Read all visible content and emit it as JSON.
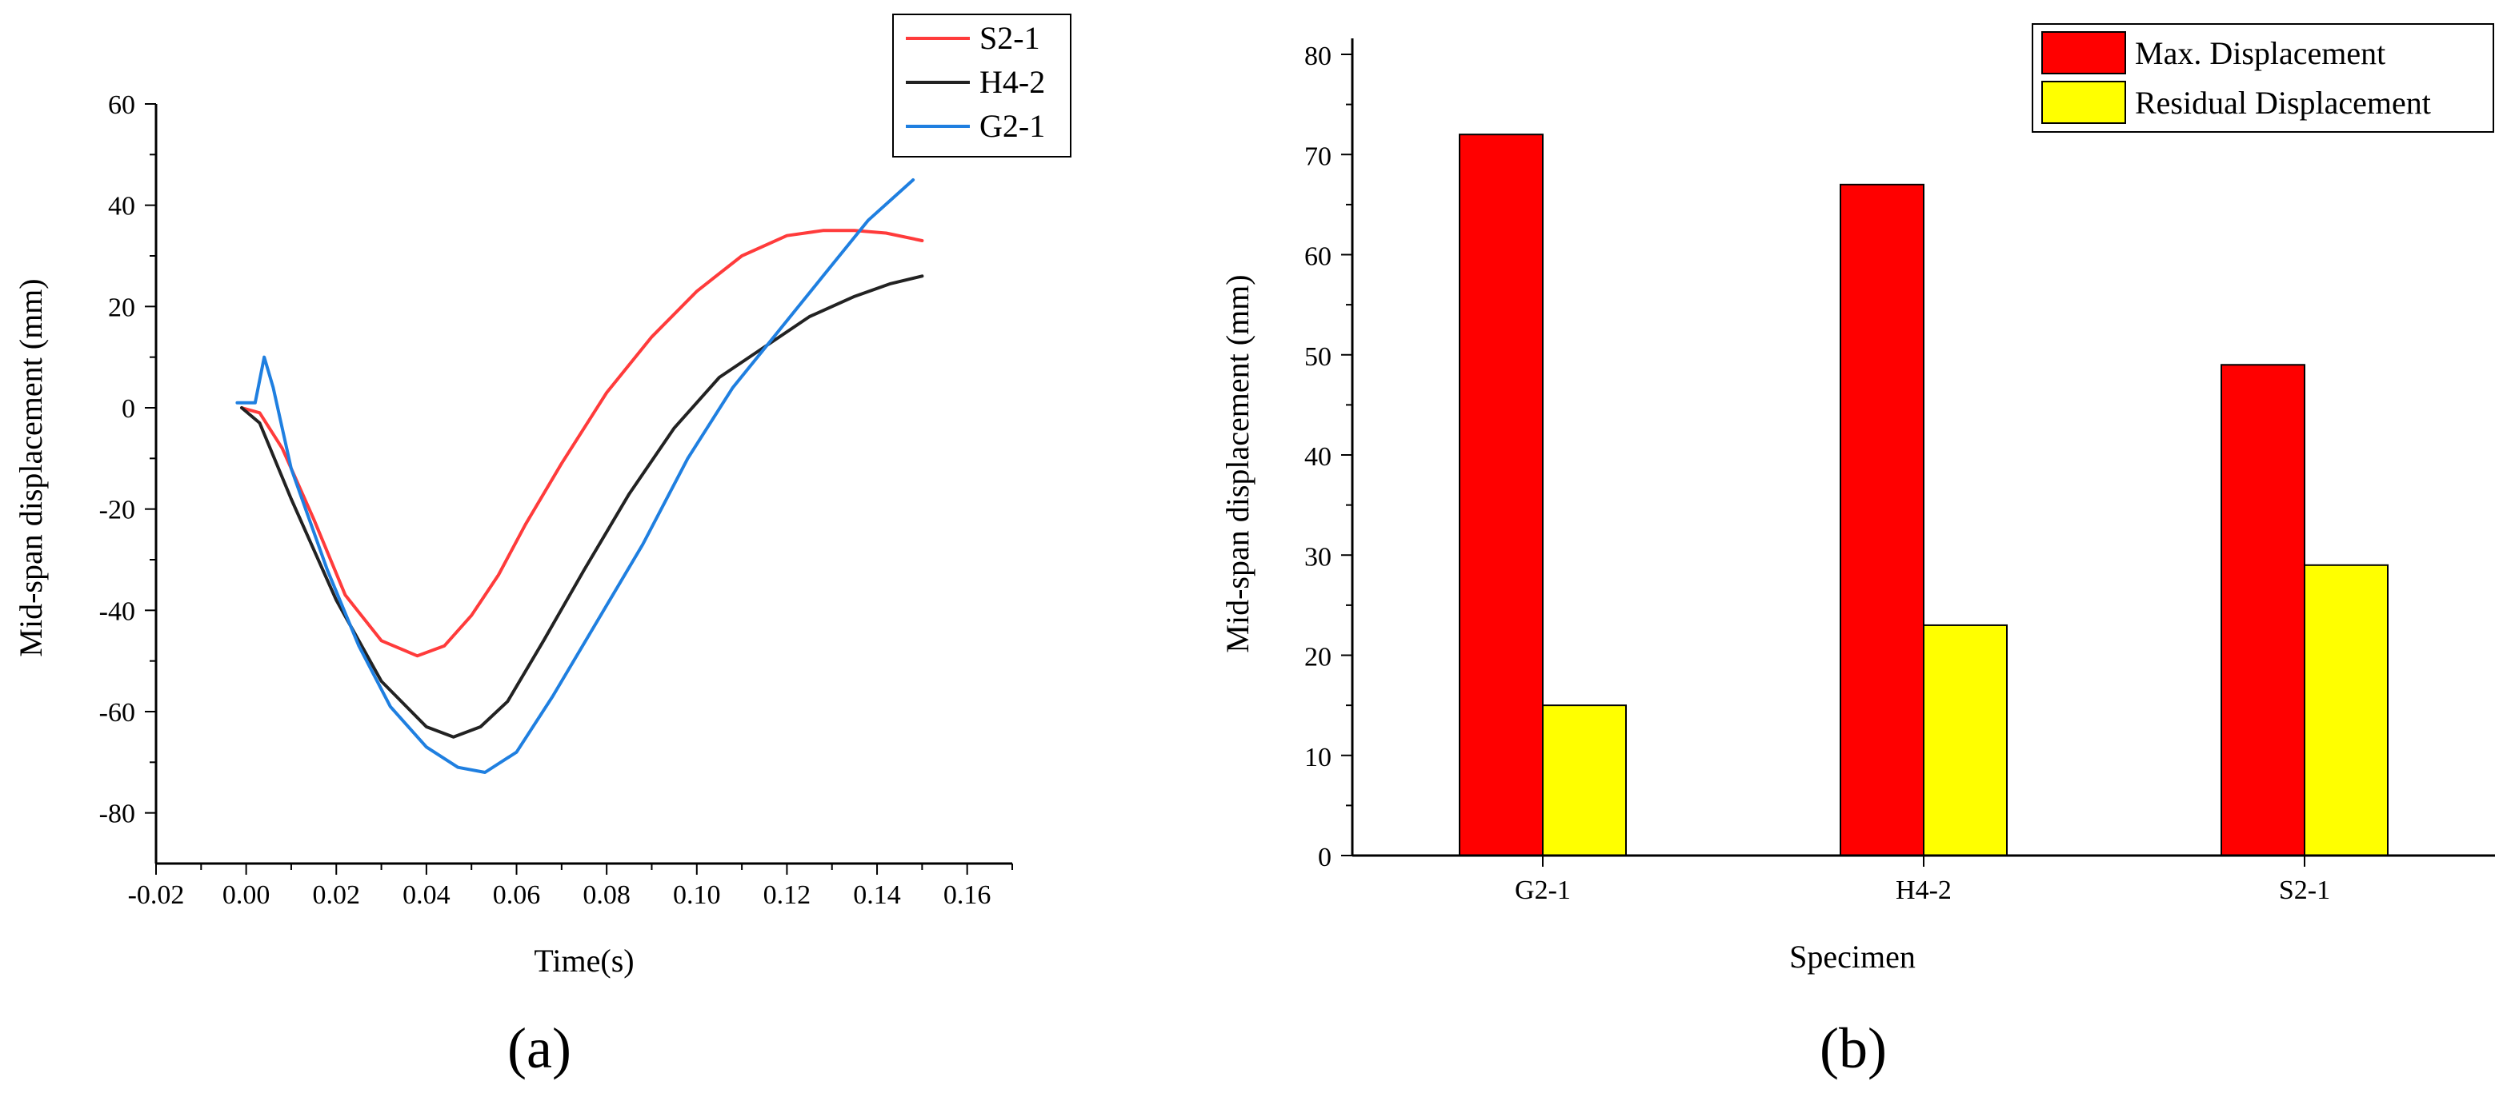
{
  "chart_data": [
    {
      "type": "line",
      "panel_label": "(a)",
      "title": "",
      "xlabel": "Time(s)",
      "ylabel": "Mid-span displacement (mm)",
      "xlim": [
        -0.02,
        0.17
      ],
      "ylim": [
        -90,
        60
      ],
      "x_ticks": [
        -0.02,
        0.0,
        0.02,
        0.04,
        0.06,
        0.08,
        0.1,
        0.12,
        0.14,
        0.16
      ],
      "x_tick_labels": [
        "-0.02",
        "0.00",
        "0.02",
        "0.04",
        "0.06",
        "0.08",
        "0.10",
        "0.12",
        "0.14",
        "0.16"
      ],
      "y_ticks": [
        -80,
        -60,
        -40,
        -20,
        0,
        20,
        40,
        60
      ],
      "y_tick_labels": [
        "-80",
        "-60",
        "-40",
        "-20",
        "0",
        "20",
        "40",
        "60"
      ],
      "legend_position": "top-right",
      "series": [
        {
          "name": "S2-1",
          "color": "#ff3b3b",
          "x": [
            -0.001,
            0.003,
            0.008,
            0.015,
            0.022,
            0.03,
            0.038,
            0.044,
            0.05,
            0.056,
            0.062,
            0.07,
            0.08,
            0.09,
            0.1,
            0.11,
            0.12,
            0.128,
            0.135,
            0.142,
            0.15
          ],
          "y": [
            0,
            -1,
            -8,
            -22,
            -37,
            -46,
            -49,
            -47,
            -41,
            -33,
            -23,
            -11,
            3,
            14,
            23,
            30,
            34,
            35,
            35,
            34.5,
            33
          ]
        },
        {
          "name": "H4-2",
          "color": "#222222",
          "x": [
            -0.001,
            0.003,
            0.01,
            0.02,
            0.03,
            0.04,
            0.046,
            0.052,
            0.058,
            0.066,
            0.075,
            0.085,
            0.095,
            0.105,
            0.115,
            0.125,
            0.135,
            0.143,
            0.15
          ],
          "y": [
            0,
            -3,
            -18,
            -38,
            -54,
            -63,
            -65,
            -63,
            -58,
            -46,
            -32,
            -17,
            -4,
            6,
            12,
            18,
            22,
            24.5,
            26
          ]
        },
        {
          "name": "G2-1",
          "color": "#1f7fe0",
          "x": [
            -0.002,
            0.002,
            0.004,
            0.006,
            0.01,
            0.018,
            0.025,
            0.032,
            0.04,
            0.047,
            0.053,
            0.06,
            0.068,
            0.078,
            0.088,
            0.098,
            0.108,
            0.118,
            0.128,
            0.138,
            0.148
          ],
          "y": [
            1,
            1,
            10,
            4,
            -12,
            -32,
            -47,
            -59,
            -67,
            -71,
            -72,
            -68,
            -57,
            -42,
            -27,
            -10,
            4,
            15,
            26,
            37,
            45
          ]
        }
      ]
    },
    {
      "type": "bar",
      "panel_label": "(b)",
      "title": "",
      "xlabel": "Specimen",
      "ylabel": "Mid-span displacement (mm)",
      "categories": [
        "G2-1",
        "H4-2",
        "S2-1"
      ],
      "ylim": [
        0,
        80
      ],
      "y_ticks": [
        0,
        10,
        20,
        30,
        40,
        50,
        60,
        70,
        80
      ],
      "y_tick_labels": [
        "0",
        "10",
        "20",
        "30",
        "40",
        "50",
        "60",
        "70",
        "80"
      ],
      "legend_position": "top-right",
      "series": [
        {
          "name": "Max. Displacement",
          "color": "#ff0000",
          "values": [
            72,
            67,
            49
          ]
        },
        {
          "name": "Residual Displacement",
          "color": "#ffff00",
          "values": [
            15,
            23,
            29
          ]
        }
      ]
    }
  ]
}
